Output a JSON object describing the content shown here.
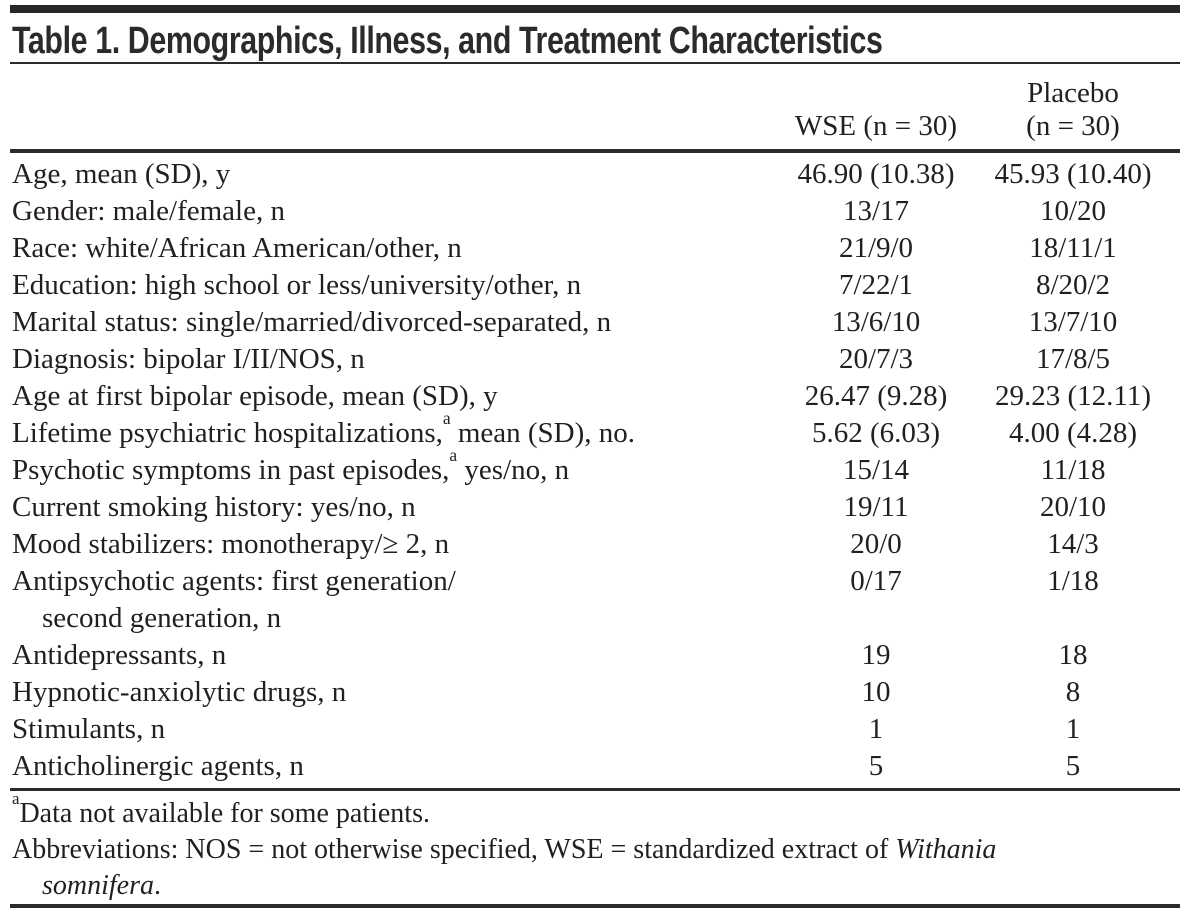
{
  "table": {
    "title": "Table 1. Demographics, Illness, and Treatment Characteristics",
    "columns": {
      "wse": "WSE (n = 30)",
      "placebo_line1": "Placebo",
      "placebo_line2": "(n = 30)"
    },
    "rows": [
      {
        "label": "Age, mean (SD), y",
        "wse": "46.90 (10.38)",
        "placebo": "45.93 (10.40)"
      },
      {
        "label": "Gender: male/female, n",
        "wse": "13/17",
        "placebo": "10/20"
      },
      {
        "label": "Race: white/African American/other, n",
        "wse": "21/9/0",
        "placebo": "18/11/1"
      },
      {
        "label": "Education: high school or less/university/other, n",
        "wse": "7/22/1",
        "placebo": "8/20/2"
      },
      {
        "label": "Marital status: single/married/divorced-separated, n",
        "wse": "13/6/10",
        "placebo": "13/7/10"
      },
      {
        "label": "Diagnosis: bipolar I/II/NOS, n",
        "wse": "20/7/3",
        "placebo": "17/8/5"
      },
      {
        "label": "Age at first bipolar episode, mean (SD), y",
        "wse": "26.47 (9.28)",
        "placebo": "29.23 (12.11)"
      },
      {
        "label": "Lifetime psychiatric hospitalizations,",
        "sup": "a",
        "label_post": " mean (SD), no.",
        "wse": "5.62 (6.03)",
        "placebo": "4.00 (4.28)"
      },
      {
        "label": "Psychotic symptoms in past episodes,",
        "sup": "a",
        "label_post": " yes/no, n",
        "wse": "15/14",
        "placebo": "11/18"
      },
      {
        "label": "Current smoking history: yes/no, n",
        "wse": "19/11",
        "placebo": "20/10"
      },
      {
        "label": "Mood stabilizers: monotherapy/≥ 2, n",
        "wse": "20/0",
        "placebo": "14/3"
      },
      {
        "label": "Antipsychotic agents: first generation/",
        "label2": "second generation, n",
        "wse": "0/17",
        "placebo": "1/18"
      },
      {
        "label": "Antidepressants, n",
        "wse": "19",
        "placebo": "18"
      },
      {
        "label": "Hypnotic-anxiolytic drugs, n",
        "wse": "10",
        "placebo": "8"
      },
      {
        "label": "Stimulants, n",
        "wse": "1",
        "placebo": "1"
      },
      {
        "label": "Anticholinergic agents, n",
        "wse": "5",
        "placebo": "5"
      }
    ],
    "footnotes": {
      "note_sup": "a",
      "note_text": "Data not available for some patients.",
      "abbrev_pre": "Abbreviations: NOS = not otherwise specified, WSE = standardized extract of ",
      "abbrev_italic_1": "Withania",
      "abbrev_italic_2": "somnifera",
      "abbrev_end": "."
    },
    "colors": {
      "text": "#231f20",
      "rule": "#2b2b2b",
      "background": "#ffffff"
    }
  }
}
